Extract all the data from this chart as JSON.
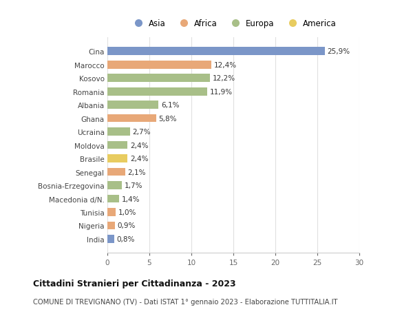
{
  "countries": [
    "Cina",
    "Marocco",
    "Kosovo",
    "Romania",
    "Albania",
    "Ghana",
    "Ucraina",
    "Moldova",
    "Brasile",
    "Senegal",
    "Bosnia-Erzegovina",
    "Macedonia d/N.",
    "Tunisia",
    "Nigeria",
    "India"
  ],
  "values": [
    25.9,
    12.4,
    12.2,
    11.9,
    6.1,
    5.8,
    2.7,
    2.4,
    2.4,
    2.1,
    1.7,
    1.4,
    1.0,
    0.9,
    0.8
  ],
  "labels": [
    "25,9%",
    "12,4%",
    "12,2%",
    "11,9%",
    "6,1%",
    "5,8%",
    "2,7%",
    "2,4%",
    "2,4%",
    "2,1%",
    "1,7%",
    "1,4%",
    "1,0%",
    "0,9%",
    "0,8%"
  ],
  "continents": [
    "Asia",
    "Africa",
    "Europa",
    "Europa",
    "Europa",
    "Africa",
    "Europa",
    "Europa",
    "America",
    "Africa",
    "Europa",
    "Europa",
    "Africa",
    "Africa",
    "Asia"
  ],
  "colors": {
    "Asia": "#7b96c8",
    "Africa": "#e8a878",
    "Europa": "#a8bf88",
    "America": "#e8cc60"
  },
  "legend_order": [
    "Asia",
    "Africa",
    "Europa",
    "America"
  ],
  "legend_colors": [
    "#7b96c8",
    "#e8a878",
    "#a8bf88",
    "#e8cc60"
  ],
  "xlim": [
    0,
    30
  ],
  "xticks": [
    0,
    5,
    10,
    15,
    20,
    25,
    30
  ],
  "title": "Cittadini Stranieri per Cittadinanza - 2023",
  "subtitle": "COMUNE DI TREVIGNANO (TV) - Dati ISTAT 1° gennaio 2023 - Elaborazione TUTTITALIA.IT",
  "bg_color": "#ffffff",
  "plot_bg_color": "#ffffff",
  "grid_color": "#e0e0e0",
  "bar_height": 0.6,
  "label_fontsize": 7.5,
  "tick_fontsize": 7.5
}
